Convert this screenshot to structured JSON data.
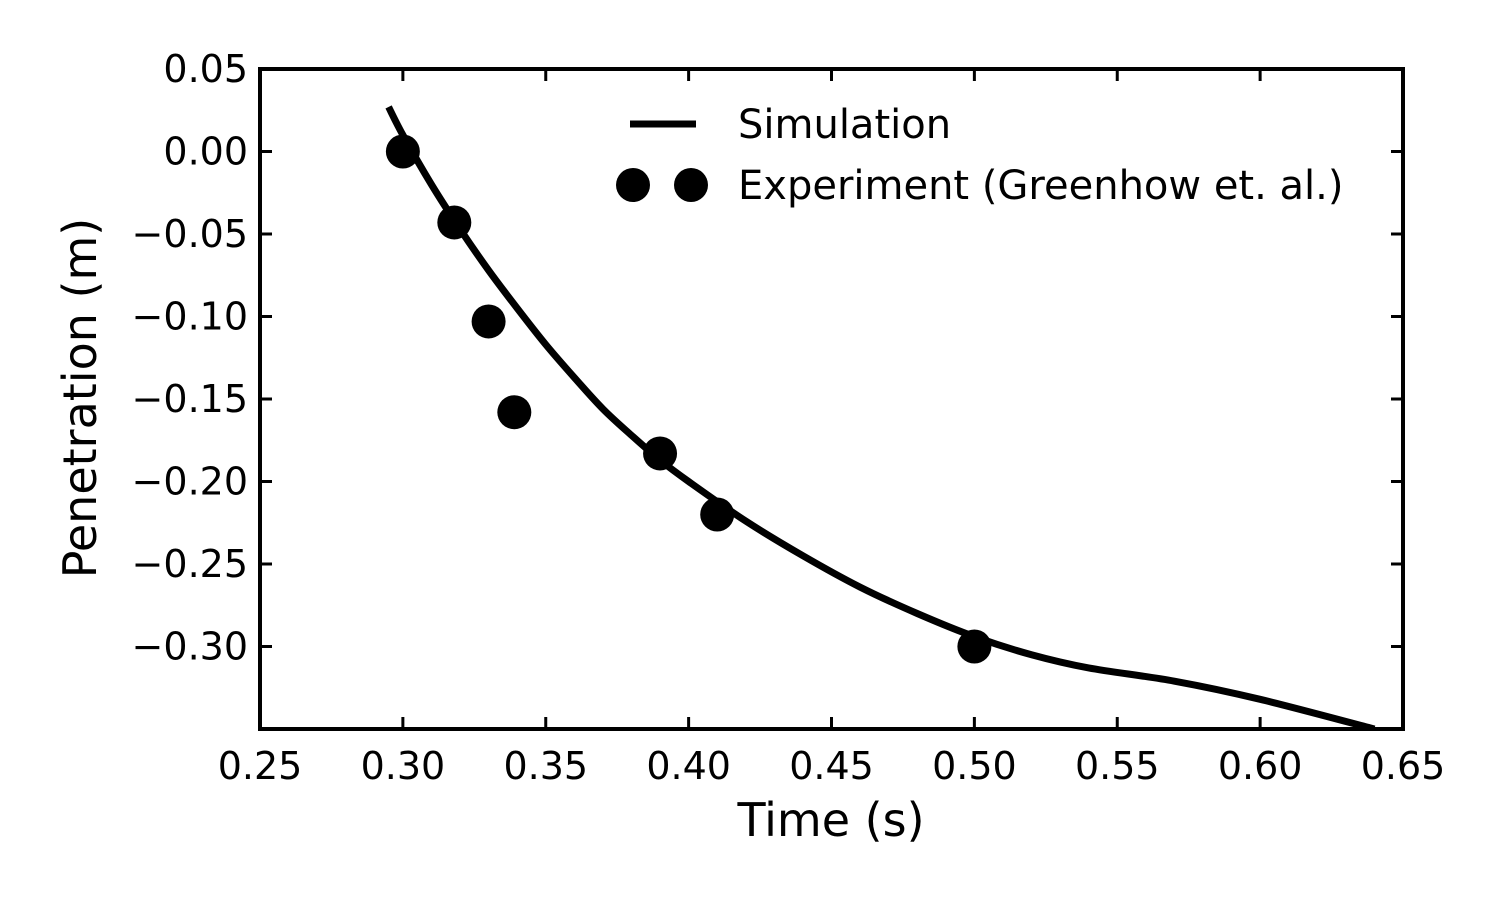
{
  "chart_data": {
    "type": "line",
    "xlabel": "Time (s)",
    "ylabel": "Penetration (m)",
    "xlim": [
      0.25,
      0.65
    ],
    "ylim": [
      -0.35,
      0.05
    ],
    "xticks": [
      0.25,
      0.3,
      0.35,
      0.4,
      0.45,
      0.5,
      0.55,
      0.6,
      0.65
    ],
    "xtick_labels": [
      "0.25",
      "0.30",
      "0.35",
      "0.40",
      "0.45",
      "0.50",
      "0.55",
      "0.60",
      "0.65"
    ],
    "yticks": [
      0.05,
      0.0,
      -0.05,
      -0.1,
      -0.15,
      -0.2,
      -0.25,
      -0.3
    ],
    "ytick_labels": [
      "0.05",
      "0.00",
      "−0.05",
      "−0.10",
      "−0.15",
      "−0.20",
      "−0.25",
      "−0.30"
    ],
    "grid": false,
    "legend_position": "top-right",
    "line_color": "#000000",
    "series": [
      {
        "name": "Simulation",
        "kind": "line",
        "x": [
          0.295,
          0.3,
          0.31,
          0.32,
          0.33,
          0.34,
          0.35,
          0.36,
          0.37,
          0.38,
          0.39,
          0.4,
          0.42,
          0.44,
          0.46,
          0.48,
          0.5,
          0.52,
          0.54,
          0.57,
          0.6,
          0.64
        ],
        "y": [
          0.027,
          0.01,
          -0.02,
          -0.047,
          -0.072,
          -0.095,
          -0.117,
          -0.137,
          -0.156,
          -0.172,
          -0.187,
          -0.2,
          -0.224,
          -0.245,
          -0.264,
          -0.28,
          -0.294,
          -0.305,
          -0.313,
          -0.321,
          -0.332,
          -0.35
        ]
      },
      {
        "name": "Experiment (Greenhow et. al.)",
        "kind": "scatter",
        "x": [
          0.3,
          0.318,
          0.33,
          0.339,
          0.39,
          0.41,
          0.5
        ],
        "y": [
          0.0,
          -0.043,
          -0.103,
          -0.158,
          -0.183,
          -0.22,
          -0.3
        ]
      }
    ]
  }
}
